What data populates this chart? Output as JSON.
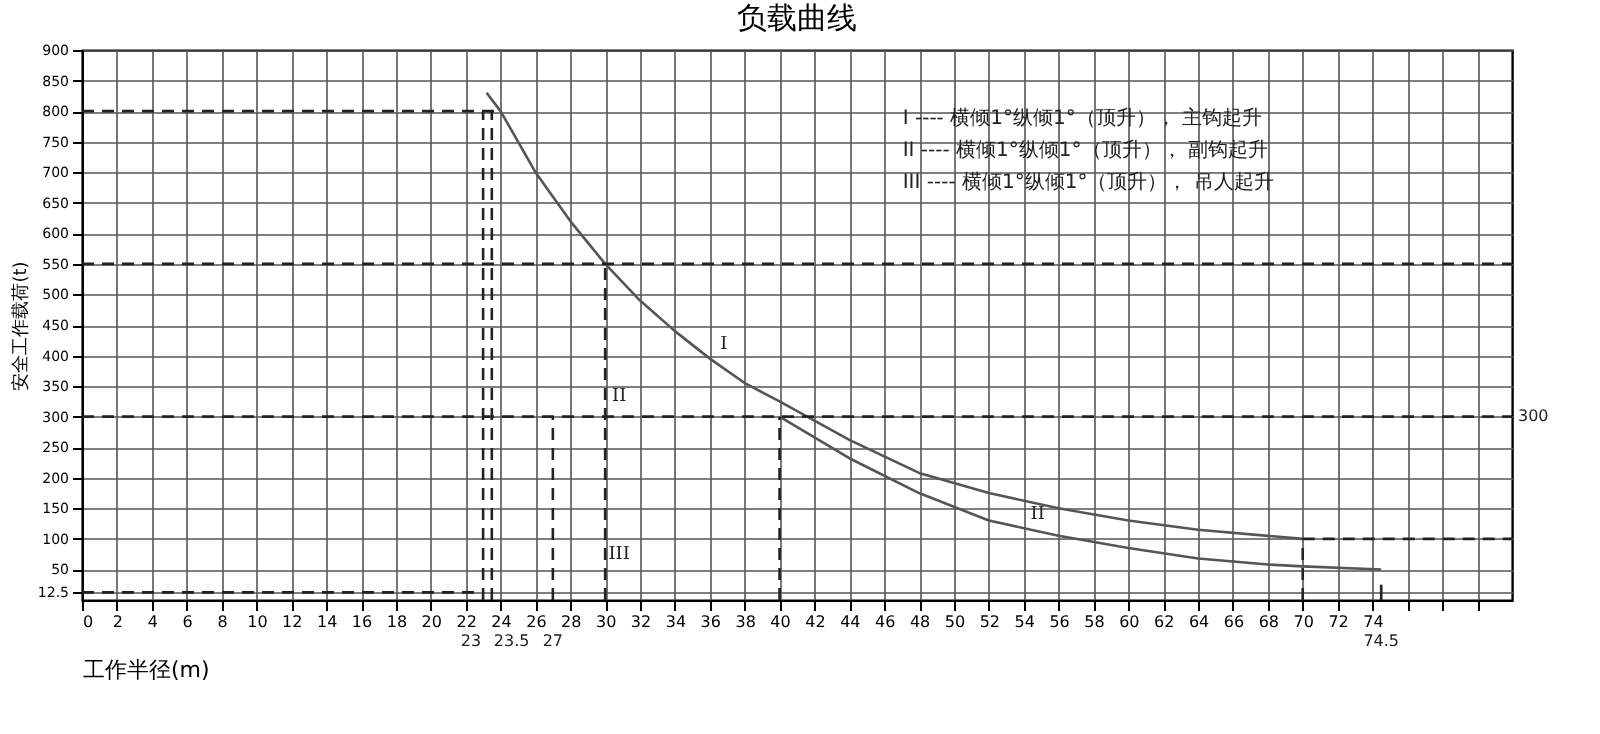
{
  "chart_data": {
    "type": "line",
    "title": "负载曲线",
    "xlabel": "工作半径(m)",
    "ylabel": "安全工作载荷(t)",
    "xlim": [
      0,
      82
    ],
    "xticks": [
      0,
      2,
      4,
      6,
      8,
      10,
      12,
      14,
      16,
      18,
      20,
      22,
      24,
      26,
      28,
      30,
      32,
      34,
      36,
      38,
      40,
      42,
      44,
      46,
      48,
      50,
      52,
      54,
      56,
      58,
      60,
      62,
      64,
      66,
      68,
      70,
      72,
      74,
      {
        "value": 76,
        "label": null
      },
      {
        "value": 78,
        "label": null
      },
      {
        "value": 80,
        "label": null
      }
    ],
    "ylim": [
      0,
      900
    ],
    "yticks": [
      12.5,
      50,
      100,
      150,
      200,
      250,
      300,
      350,
      400,
      450,
      500,
      550,
      600,
      650,
      700,
      750,
      800,
      850,
      900
    ],
    "grid": true,
    "marker": "none",
    "series": [
      {
        "color": "#555555",
        "line_style": "solid",
        "x": [
          23.2,
          24,
          26,
          28,
          30,
          32,
          34,
          36,
          38,
          40,
          44,
          48,
          52,
          56,
          60,
          64,
          68,
          70
        ],
        "values": [
          830,
          800,
          700,
          620,
          550,
          490,
          440,
          395,
          355,
          325,
          262,
          208,
          175,
          150,
          130,
          115,
          105,
          100
        ]
      },
      {
        "color": "#555555",
        "line_style": "solid",
        "x": [
          40,
          44,
          48,
          52,
          56,
          60,
          64,
          68,
          70,
          74.5
        ],
        "values": [
          300,
          232,
          175,
          130,
          105,
          85,
          68,
          58,
          55,
          50
        ]
      },
      {
        "color": "#222222",
        "line_style": "dashed",
        "x": [
          0,
          24
        ],
        "values": [
          800,
          800
        ]
      },
      {
        "color": "#222222",
        "line_style": "dashed",
        "x": [
          0,
          82
        ],
        "values": [
          550,
          550
        ]
      },
      {
        "color": "#222222",
        "line_style": "dashed",
        "x": [
          0,
          82
        ],
        "values": [
          300,
          300
        ]
      },
      {
        "color": "#222222",
        "line_style": "dashed",
        "x": [
          70,
          82
        ],
        "values": [
          100,
          100
        ]
      },
      {
        "color": "#222222",
        "line_style": "dashed",
        "x": [
          0,
          23
        ],
        "values": [
          12.5,
          12.5
        ]
      },
      {
        "color": "#222222",
        "line_style": "dashed",
        "x": [
          23,
          23
        ],
        "values": [
          0,
          800
        ]
      },
      {
        "color": "#222222",
        "line_style": "dashed",
        "x": [
          23.5,
          23.5
        ],
        "values": [
          0,
          800
        ]
      },
      {
        "color": "#222222",
        "line_style": "dashed",
        "x": [
          27,
          27
        ],
        "values": [
          0,
          300
        ]
      },
      {
        "color": "#222222",
        "line_style": "dashed",
        "x": [
          30,
          30
        ],
        "values": [
          0,
          550
        ]
      },
      {
        "color": "#222222",
        "line_style": "dashed",
        "x": [
          40,
          40
        ],
        "values": [
          0,
          300
        ]
      },
      {
        "color": "#222222",
        "line_style": "dashed",
        "x": [
          70,
          70
        ],
        "values": [
          0,
          100
        ]
      },
      {
        "color": "#222222",
        "line_style": "solid",
        "x": [
          74.5,
          74.5
        ],
        "values": [
          0,
          25
        ]
      }
    ],
    "annotations": [
      "I ---- 横倾1°纵倾1°（顶升），  主钩起升",
      "II ---- 横倾1°纵倾1°（顶升），  副钩起升",
      "III ---- 横倾1°纵倾1°（顶升），  吊人起升",
      {
        "text": "I",
        "x": 36,
        "y": 395
      },
      {
        "text": "II",
        "x": 30,
        "y": 310
      },
      {
        "text": "III",
        "x": 30,
        "y": 50
      },
      {
        "text": "II",
        "x": 54,
        "y": 117
      },
      {
        "text": "23",
        "x": 23,
        "y": 0
      },
      {
        "text": "23.5",
        "x": 23.5,
        "y": 0
      },
      {
        "text": "27",
        "x": 27,
        "y": 0
      },
      {
        "text": "74.5",
        "x": 74.5,
        "y": 0
      },
      {
        "text": "300",
        "x": 82,
        "y": 300
      }
    ]
  }
}
